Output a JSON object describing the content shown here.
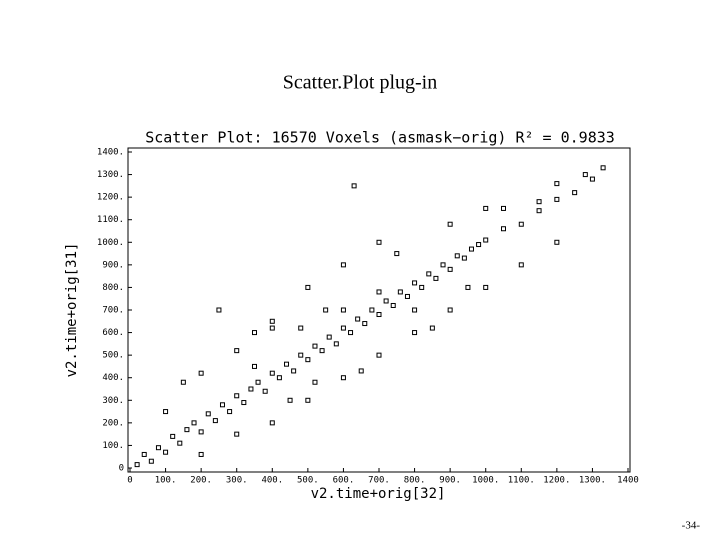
{
  "slide_title": "Scatter.Plot plug-in",
  "page_number": "-34-",
  "chart_data": {
    "type": "scatter",
    "title": "Scatter Plot: 16570 Voxels (asmask−orig) R² = 0.9833",
    "xlabel": "v2.time+orig[32]",
    "ylabel": "v2.time+orig[31]",
    "color": "#000000",
    "xlim": [
      0,
      1400
    ],
    "ylim": [
      0,
      1400
    ],
    "xticks": [
      0,
      {
        "value": 100,
        "label": "100."
      },
      {
        "value": 200,
        "label": "200."
      },
      {
        "value": 300,
        "label": "300."
      },
      {
        "value": 400,
        "label": "400."
      },
      {
        "value": 500,
        "label": "500."
      },
      {
        "value": 600,
        "label": "600."
      },
      {
        "value": 700,
        "label": "700."
      },
      {
        "value": 800,
        "label": "800."
      },
      {
        "value": 900,
        "label": "900."
      },
      {
        "value": 1000,
        "label": "1000."
      },
      {
        "value": 1100,
        "label": "1100."
      },
      {
        "value": 1200,
        "label": "1200."
      },
      {
        "value": 1300,
        "label": "1300."
      },
      1400
    ],
    "yticks": [
      0,
      {
        "value": 100,
        "label": "100."
      },
      {
        "value": 200,
        "label": "200."
      },
      {
        "value": 300,
        "label": "300."
      },
      {
        "value": 400,
        "label": "400."
      },
      {
        "value": 500,
        "label": "500."
      },
      {
        "value": 600,
        "label": "600."
      },
      {
        "value": 700,
        "label": "700."
      },
      {
        "value": 800,
        "label": "800."
      },
      {
        "value": 900,
        "label": "900."
      },
      {
        "value": 1000,
        "label": "1000."
      },
      {
        "value": 1100,
        "label": "1100."
      },
      {
        "value": 1200,
        "label": "1200."
      },
      {
        "value": 1300,
        "label": "1300."
      },
      {
        "value": 1400,
        "label": "1400."
      }
    ],
    "x": [
      20,
      40,
      60,
      80,
      100,
      120,
      140,
      160,
      180,
      200,
      220,
      240,
      260,
      280,
      300,
      320,
      340,
      360,
      380,
      400,
      420,
      440,
      460,
      480,
      500,
      520,
      540,
      560,
      580,
      600,
      620,
      640,
      660,
      680,
      700,
      720,
      740,
      760,
      780,
      800,
      820,
      840,
      860,
      880,
      900,
      920,
      940,
      960,
      980,
      1000,
      1050,
      1100,
      1150,
      1200,
      1250,
      1300,
      100,
      150,
      200,
      300,
      350,
      250,
      400,
      500,
      600,
      700,
      750,
      500,
      600,
      700,
      800,
      900,
      400,
      300,
      200,
      1000,
      1100,
      1200,
      1050,
      900,
      1280,
      1330,
      1000,
      400,
      450,
      550,
      650,
      850,
      950,
      350,
      600,
      700,
      800,
      480,
      520,
      1200,
      1150,
      630
    ],
    "values": [
      15,
      60,
      30,
      90,
      70,
      140,
      110,
      170,
      200,
      160,
      240,
      210,
      280,
      250,
      320,
      290,
      350,
      380,
      340,
      420,
      400,
      460,
      430,
      500,
      480,
      540,
      520,
      580,
      550,
      620,
      600,
      660,
      640,
      700,
      680,
      740,
      720,
      780,
      760,
      820,
      800,
      860,
      840,
      900,
      880,
      940,
      930,
      970,
      990,
      1010,
      1060,
      1080,
      1140,
      1190,
      1220,
      1280,
      250,
      380,
      420,
      520,
      600,
      700,
      650,
      800,
      900,
      1000,
      950,
      300,
      400,
      500,
      600,
      700,
      200,
      150,
      60,
      800,
      900,
      1000,
      1150,
      1080,
      1300,
      1330,
      1150,
      620,
      300,
      700,
      430,
      620,
      800,
      450,
      700,
      780,
      700,
      620,
      380,
      1260,
      1180,
      1250
    ]
  }
}
